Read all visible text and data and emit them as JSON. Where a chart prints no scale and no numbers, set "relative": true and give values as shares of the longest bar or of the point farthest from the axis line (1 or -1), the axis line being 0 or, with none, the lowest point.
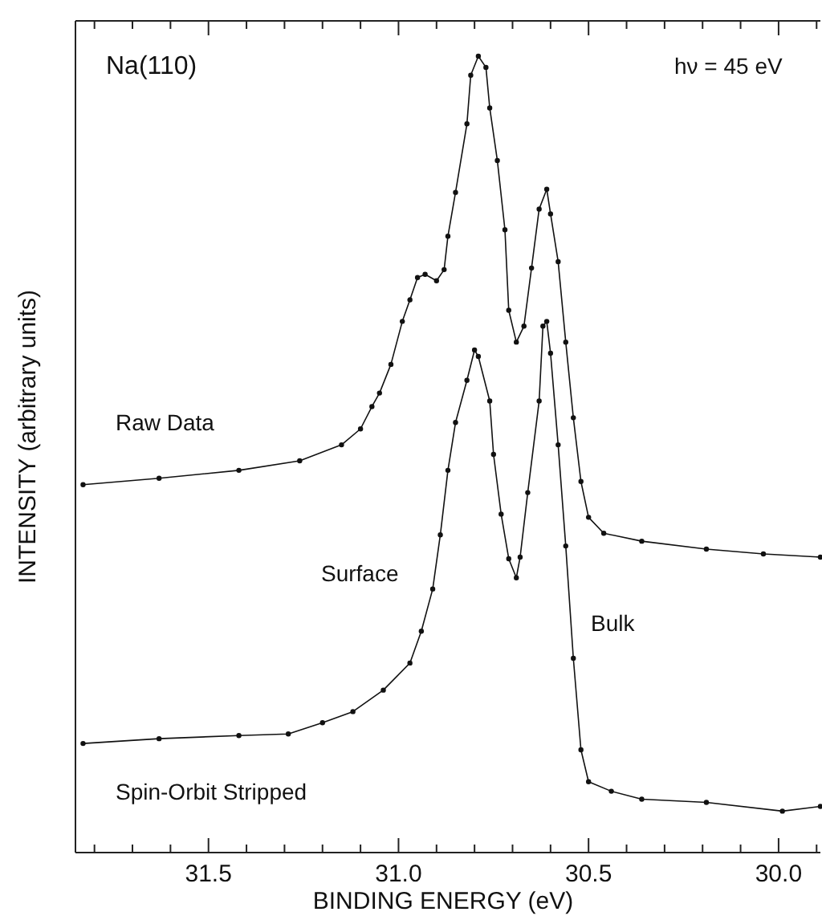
{
  "chart_data": {
    "type": "line",
    "xlabel": "BINDING ENERGY (eV)",
    "ylabel": "INTENSITY (arbitrary units)",
    "relative": true,
    "legend": false,
    "marker": "circle",
    "line_style": "solid",
    "grid": false,
    "xlim": [
      31.85,
      29.89
    ],
    "xticks": [
      {
        "value": 31.8,
        "label": null
      },
      {
        "value": 31.7,
        "label": null
      },
      {
        "value": 31.6,
        "label": null
      },
      {
        "value": 31.5,
        "label": "31.5"
      },
      {
        "value": 31.4,
        "label": null
      },
      {
        "value": 31.3,
        "label": null
      },
      {
        "value": 31.2,
        "label": null
      },
      {
        "value": 31.1,
        "label": null
      },
      {
        "value": 31.0,
        "label": "31.0"
      },
      {
        "value": 30.9,
        "label": null
      },
      {
        "value": 30.8,
        "label": null
      },
      {
        "value": 30.7,
        "label": null
      },
      {
        "value": 30.6,
        "label": null
      },
      {
        "value": 30.5,
        "label": "30.5"
      },
      {
        "value": 30.4,
        "label": null
      },
      {
        "value": 30.3,
        "label": null
      },
      {
        "value": 30.2,
        "label": null
      },
      {
        "value": 30.1,
        "label": null
      },
      {
        "value": 30.0,
        "label": "30.0"
      },
      {
        "value": 29.9,
        "label": null
      }
    ],
    "annotations": [
      "Na(110)",
      "hν = 45 eV",
      "Surface",
      "Bulk"
    ],
    "series": [
      {
        "name": "Raw Data",
        "color": "#111111",
        "x": [
          31.83,
          31.63,
          31.42,
          31.26,
          31.15,
          31.1,
          31.07,
          31.05,
          31.02,
          30.99,
          30.97,
          30.95,
          30.93,
          30.9,
          30.88,
          30.87,
          30.85,
          30.82,
          30.81,
          30.79,
          30.77,
          30.76,
          30.74,
          30.72,
          30.71,
          30.69,
          30.67,
          30.65,
          30.63,
          30.61,
          30.6,
          30.58,
          30.56,
          30.54,
          30.52,
          30.5,
          30.46,
          30.36,
          30.19,
          30.04,
          29.89
        ],
        "values": [
          0.462,
          0.47,
          0.48,
          0.492,
          0.512,
          0.532,
          0.56,
          0.577,
          0.613,
          0.667,
          0.694,
          0.722,
          0.726,
          0.718,
          0.732,
          0.774,
          0.829,
          0.915,
          0.976,
          1.0,
          0.986,
          0.935,
          0.869,
          0.782,
          0.681,
          0.641,
          0.661,
          0.734,
          0.808,
          0.833,
          0.802,
          0.742,
          0.641,
          0.546,
          0.466,
          0.421,
          0.401,
          0.391,
          0.381,
          0.375,
          0.371
        ]
      },
      {
        "name": "Spin-Orbit Stripped",
        "color": "#111111",
        "x": [
          31.83,
          31.63,
          31.42,
          31.29,
          31.2,
          31.12,
          31.04,
          30.97,
          30.94,
          30.91,
          30.89,
          30.87,
          30.85,
          30.82,
          30.8,
          30.79,
          30.76,
          30.75,
          30.73,
          30.71,
          30.69,
          30.68,
          30.66,
          30.63,
          30.62,
          30.61,
          30.6,
          30.58,
          30.56,
          30.54,
          30.52,
          30.5,
          30.44,
          30.36,
          30.19,
          29.99,
          29.89
        ],
        "values": [
          0.137,
          0.143,
          0.147,
          0.149,
          0.163,
          0.177,
          0.204,
          0.238,
          0.278,
          0.331,
          0.399,
          0.48,
          0.54,
          0.593,
          0.631,
          0.623,
          0.567,
          0.5,
          0.425,
          0.369,
          0.345,
          0.371,
          0.452,
          0.567,
          0.661,
          0.667,
          0.627,
          0.512,
          0.385,
          0.244,
          0.129,
          0.089,
          0.077,
          0.067,
          0.063,
          0.052,
          0.058
        ]
      }
    ]
  }
}
